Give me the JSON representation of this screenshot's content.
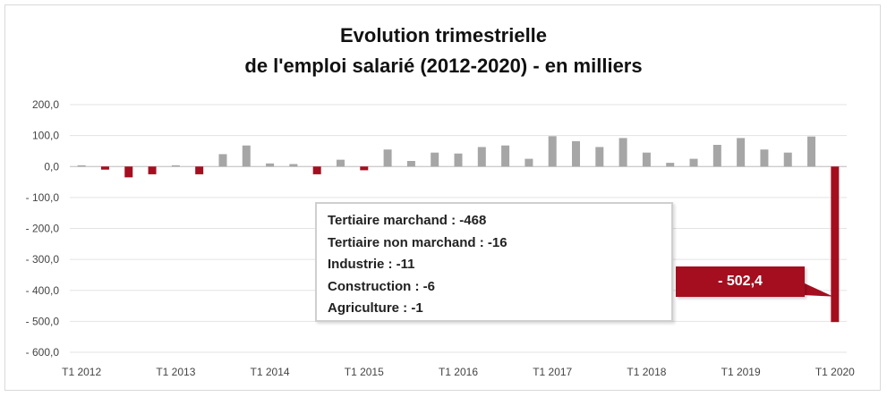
{
  "chart_data": {
    "type": "bar",
    "title_lines": [
      "Evolution trimestrielle",
      "de l'emploi salarié (2012-2020) - en milliers"
    ],
    "xlabel": "",
    "ylabel": "",
    "ylim": [
      -600,
      200
    ],
    "yticks": [
      200,
      100,
      0,
      -100,
      -200,
      -300,
      -400,
      -500,
      -600
    ],
    "ytick_labels": [
      "200,0",
      "100,0",
      "0,0",
      "- 100,0",
      "- 200,0",
      "- 300,0",
      "- 400,0",
      "- 500,0",
      "- 600,0"
    ],
    "categories": [
      "T1 2012",
      "T2 2012",
      "T3 2012",
      "T4 2012",
      "T1 2013",
      "T2 2013",
      "T3 2013",
      "T4 2013",
      "T1 2014",
      "T2 2014",
      "T3 2014",
      "T4 2014",
      "T1 2015",
      "T2 2015",
      "T3 2015",
      "T4 2015",
      "T1 2016",
      "T2 2016",
      "T3 2016",
      "T4 2016",
      "T1 2017",
      "T2 2017",
      "T3 2017",
      "T4 2017",
      "T1 2018",
      "T2 2018",
      "T3 2018",
      "T4 2018",
      "T1 2019",
      "T2 2019",
      "T3 2019",
      "T4 2019",
      "T1 2020"
    ],
    "x_tick_labels": [
      "T1 2012",
      "T1 2013",
      "T1 2014",
      "T1 2015",
      "T1 2016",
      "T1 2017",
      "T1 2018",
      "T1 2019",
      "T1 2020"
    ],
    "values": [
      4,
      -10,
      -35,
      -25,
      4,
      -25,
      40,
      68,
      10,
      8,
      -25,
      22,
      -12,
      55,
      18,
      45,
      42,
      63,
      68,
      25,
      98,
      82,
      63,
      92,
      45,
      12,
      25,
      70,
      92,
      55,
      45,
      97,
      -502.4
    ],
    "colors": {
      "positive": "#a6a6a6",
      "negative": "#a50e1f"
    },
    "grid": true,
    "annotations": {
      "breakdown": [
        "Tertiaire marchand : -468",
        "Tertiaire non marchand : -16",
        "Industrie : -11",
        "Construction : -6",
        "Agriculture : -1"
      ],
      "callout": "- 502,4"
    }
  }
}
